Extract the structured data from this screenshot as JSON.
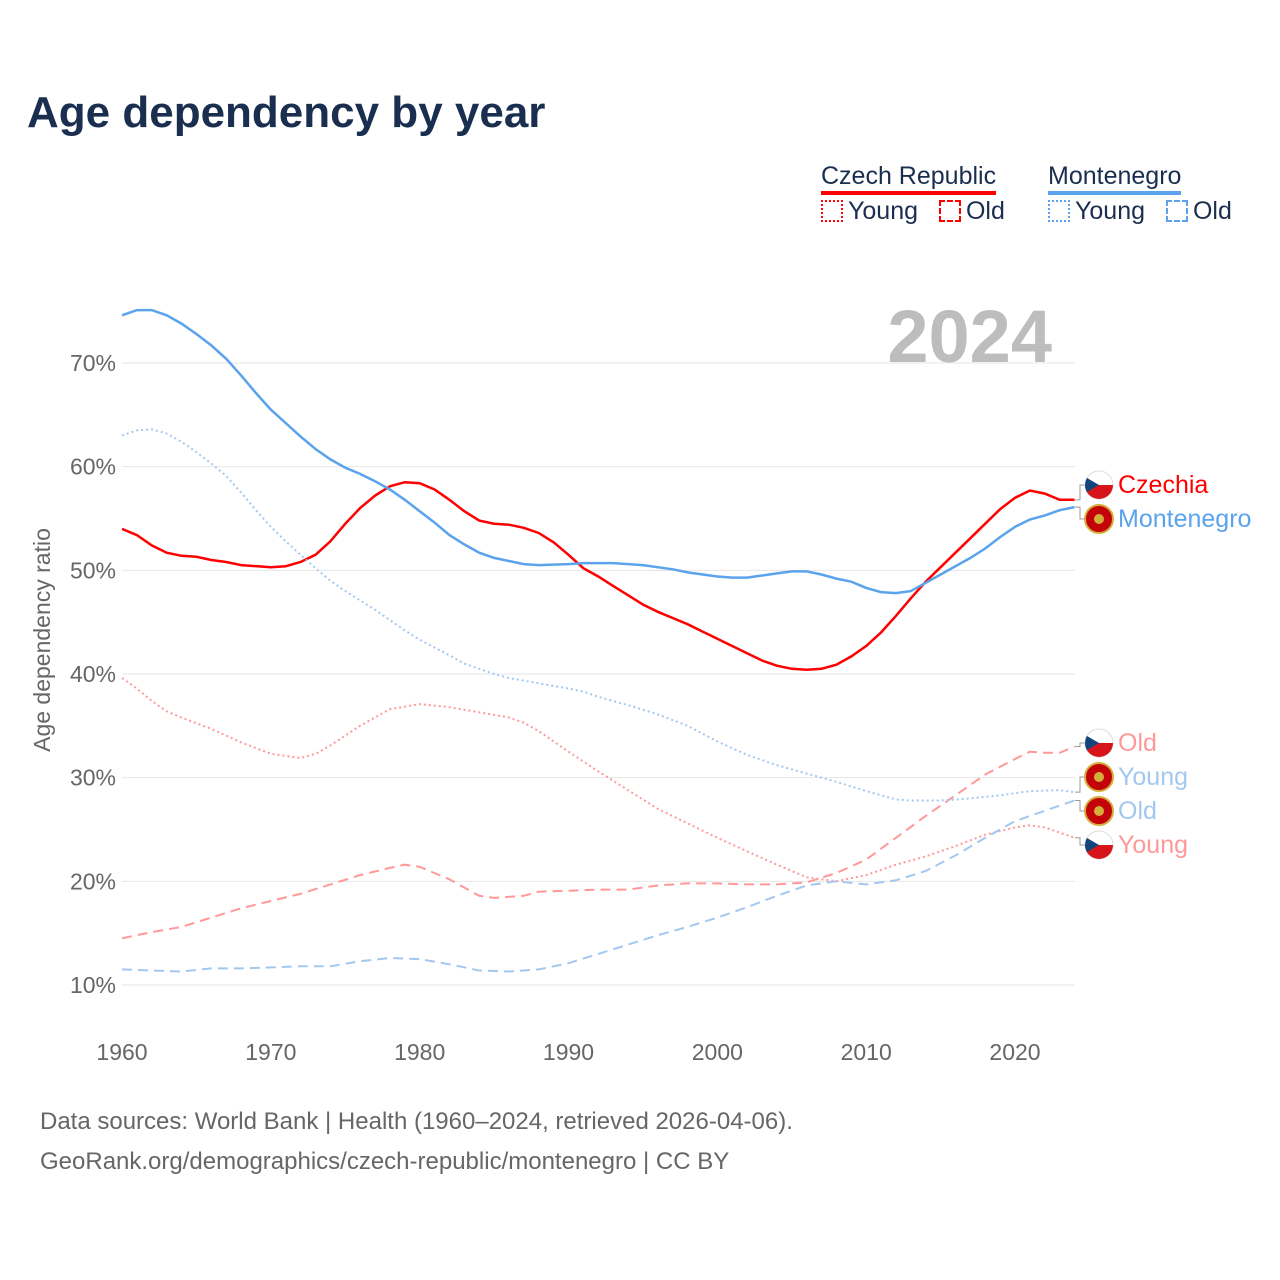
{
  "title": "Age dependency by year",
  "legend": {
    "groups": [
      {
        "name": "Czech Republic",
        "color": "#ff0000",
        "items": [
          "Young",
          "Old"
        ]
      },
      {
        "name": "Montenegro",
        "color": "#5ba3ec",
        "items": [
          "Young",
          "Old"
        ]
      }
    ]
  },
  "year_label": "2024",
  "footer": {
    "line1": "Data sources: World Bank | Health (1960–2024, retrieved 2026-04-06).",
    "line2": "GeoRank.org/demographics/czech-republic/montenegro | CC BY"
  },
  "chart_data": {
    "type": "line",
    "title": "Age dependency by year",
    "xlabel": "",
    "ylabel": "Age dependency ratio",
    "xlim": [
      1960,
      2024
    ],
    "ylim": [
      7,
      76
    ],
    "xticks": [
      1960,
      1970,
      1980,
      1990,
      2000,
      2010,
      2020
    ],
    "yticks": [
      10,
      20,
      30,
      40,
      50,
      60,
      70
    ],
    "ytick_labels": [
      "10%",
      "20%",
      "30%",
      "40%",
      "50%",
      "60%",
      "70%"
    ],
    "grid": true,
    "series": [
      {
        "name": "Czechia",
        "kind": "Total",
        "country": "cz",
        "color": "#ff0000",
        "style": "solid",
        "end_label": "Czechia",
        "points": [
          [
            1960,
            54
          ],
          [
            1961,
            53.4
          ],
          [
            1962,
            52.4
          ],
          [
            1963,
            51.7
          ],
          [
            1964,
            51.4
          ],
          [
            1965,
            51.3
          ],
          [
            1966,
            51
          ],
          [
            1967,
            50.8
          ],
          [
            1968,
            50.5
          ],
          [
            1970,
            50.3
          ],
          [
            1971,
            50.4
          ],
          [
            1972,
            50.8
          ],
          [
            1973,
            51.5
          ],
          [
            1974,
            52.8
          ],
          [
            1975,
            54.5
          ],
          [
            1976,
            56
          ],
          [
            1977,
            57.2
          ],
          [
            1978,
            58.1
          ],
          [
            1979,
            58.5
          ],
          [
            1980,
            58.4
          ],
          [
            1981,
            57.8
          ],
          [
            1982,
            56.8
          ],
          [
            1983,
            55.7
          ],
          [
            1984,
            54.8
          ],
          [
            1985,
            54.5
          ],
          [
            1986,
            54.4
          ],
          [
            1987,
            54.1
          ],
          [
            1988,
            53.6
          ],
          [
            1989,
            52.7
          ],
          [
            1990,
            51.5
          ],
          [
            1991,
            50.2
          ],
          [
            1992,
            49.4
          ],
          [
            1993,
            48.5
          ],
          [
            1994,
            47.6
          ],
          [
            1995,
            46.7
          ],
          [
            1996,
            46
          ],
          [
            1997,
            45.4
          ],
          [
            1998,
            44.8
          ],
          [
            1999,
            44.1
          ],
          [
            2000,
            43.4
          ],
          [
            2001,
            42.7
          ],
          [
            2002,
            42
          ],
          [
            2003,
            41.3
          ],
          [
            2004,
            40.8
          ],
          [
            2005,
            40.5
          ],
          [
            2006,
            40.4
          ],
          [
            2007,
            40.5
          ],
          [
            2008,
            40.9
          ],
          [
            2009,
            41.7
          ],
          [
            2010,
            42.7
          ],
          [
            2011,
            44
          ],
          [
            2012,
            45.6
          ],
          [
            2013,
            47.3
          ],
          [
            2014,
            48.9
          ],
          [
            2015,
            50.3
          ],
          [
            2016,
            51.7
          ],
          [
            2017,
            53.1
          ],
          [
            2018,
            54.5
          ],
          [
            2019,
            55.9
          ],
          [
            2020,
            57
          ],
          [
            2021,
            57.7
          ],
          [
            2022,
            57.4
          ],
          [
            2023,
            56.8
          ],
          [
            2024,
            56.8
          ]
        ]
      },
      {
        "name": "Montenegro",
        "kind": "Total",
        "country": "me",
        "color": "#5ba3ec",
        "style": "solid",
        "end_label": "Montenegro",
        "points": [
          [
            1960,
            74.6
          ],
          [
            1961,
            75.1
          ],
          [
            1962,
            75.1
          ],
          [
            1963,
            74.6
          ],
          [
            1964,
            73.8
          ],
          [
            1965,
            72.8
          ],
          [
            1966,
            71.7
          ],
          [
            1967,
            70.4
          ],
          [
            1968,
            68.8
          ],
          [
            1969,
            67.1
          ],
          [
            1970,
            65.5
          ],
          [
            1971,
            64.2
          ],
          [
            1972,
            62.9
          ],
          [
            1973,
            61.7
          ],
          [
            1974,
            60.7
          ],
          [
            1975,
            59.9
          ],
          [
            1976,
            59.3
          ],
          [
            1977,
            58.6
          ],
          [
            1978,
            57.8
          ],
          [
            1979,
            56.8
          ],
          [
            1980,
            55.7
          ],
          [
            1981,
            54.6
          ],
          [
            1982,
            53.4
          ],
          [
            1983,
            52.5
          ],
          [
            1984,
            51.7
          ],
          [
            1985,
            51.2
          ],
          [
            1986,
            50.9
          ],
          [
            1987,
            50.6
          ],
          [
            1988,
            50.5
          ],
          [
            1990,
            50.6
          ],
          [
            1991,
            50.7
          ],
          [
            1993,
            50.7
          ],
          [
            1995,
            50.5
          ],
          [
            1997,
            50.1
          ],
          [
            1998,
            49.8
          ],
          [
            2000,
            49.4
          ],
          [
            2001,
            49.3
          ],
          [
            2002,
            49.3
          ],
          [
            2003,
            49.5
          ],
          [
            2004,
            49.7
          ],
          [
            2005,
            49.9
          ],
          [
            2006,
            49.9
          ],
          [
            2007,
            49.6
          ],
          [
            2008,
            49.2
          ],
          [
            2009,
            48.9
          ],
          [
            2010,
            48.3
          ],
          [
            2011,
            47.9
          ],
          [
            2012,
            47.8
          ],
          [
            2013,
            48
          ],
          [
            2014,
            48.8
          ],
          [
            2015,
            49.6
          ],
          [
            2016,
            50.4
          ],
          [
            2017,
            51.2
          ],
          [
            2018,
            52.1
          ],
          [
            2019,
            53.2
          ],
          [
            2020,
            54.2
          ],
          [
            2021,
            54.9
          ],
          [
            2022,
            55.3
          ],
          [
            2023,
            55.8
          ],
          [
            2024,
            56.1
          ]
        ]
      },
      {
        "name": "Czechia Young",
        "kind": "Young",
        "country": "cz",
        "color": "#ff9999",
        "style": "dotted",
        "end_label": "Young",
        "points": [
          [
            1960,
            39.6
          ],
          [
            1961,
            38.6
          ],
          [
            1962,
            37.4
          ],
          [
            1963,
            36.4
          ],
          [
            1964,
            35.8
          ],
          [
            1966,
            34.7
          ],
          [
            1968,
            33.4
          ],
          [
            1970,
            32.3
          ],
          [
            1972,
            31.9
          ],
          [
            1973,
            32.3
          ],
          [
            1974,
            33.1
          ],
          [
            1976,
            35
          ],
          [
            1978,
            36.6
          ],
          [
            1980,
            37.1
          ],
          [
            1982,
            36.8
          ],
          [
            1984,
            36.3
          ],
          [
            1986,
            35.8
          ],
          [
            1987,
            35.3
          ],
          [
            1988,
            34.5
          ],
          [
            1990,
            32.5
          ],
          [
            1992,
            30.6
          ],
          [
            1994,
            28.8
          ],
          [
            1996,
            27
          ],
          [
            1998,
            25.6
          ],
          [
            2000,
            24.2
          ],
          [
            2002,
            22.9
          ],
          [
            2004,
            21.6
          ],
          [
            2006,
            20.4
          ],
          [
            2008,
            20
          ],
          [
            2010,
            20.6
          ],
          [
            2012,
            21.6
          ],
          [
            2014,
            22.4
          ],
          [
            2016,
            23.4
          ],
          [
            2018,
            24.5
          ],
          [
            2020,
            25.2
          ],
          [
            2021,
            25.4
          ],
          [
            2022,
            25.2
          ],
          [
            2024,
            24.2
          ]
        ]
      },
      {
        "name": "Czechia Old",
        "kind": "Old",
        "country": "cz",
        "color": "#ff9999",
        "style": "dashed",
        "end_label": "Old",
        "points": [
          [
            1960,
            14.5
          ],
          [
            1962,
            15.1
          ],
          [
            1964,
            15.6
          ],
          [
            1966,
            16.5
          ],
          [
            1968,
            17.4
          ],
          [
            1970,
            18.1
          ],
          [
            1972,
            18.8
          ],
          [
            1974,
            19.7
          ],
          [
            1976,
            20.6
          ],
          [
            1978,
            21.3
          ],
          [
            1979,
            21.6
          ],
          [
            1980,
            21.4
          ],
          [
            1982,
            20.2
          ],
          [
            1984,
            18.6
          ],
          [
            1985,
            18.4
          ],
          [
            1987,
            18.6
          ],
          [
            1988,
            19
          ],
          [
            1990,
            19.1
          ],
          [
            1992,
            19.2
          ],
          [
            1994,
            19.2
          ],
          [
            1996,
            19.6
          ],
          [
            1998,
            19.8
          ],
          [
            2000,
            19.8
          ],
          [
            2002,
            19.7
          ],
          [
            2004,
            19.7
          ],
          [
            2006,
            19.9
          ],
          [
            2008,
            20.8
          ],
          [
            2010,
            22.1
          ],
          [
            2012,
            24.2
          ],
          [
            2014,
            26.3
          ],
          [
            2016,
            28.3
          ],
          [
            2018,
            30.3
          ],
          [
            2020,
            31.8
          ],
          [
            2021,
            32.5
          ],
          [
            2022,
            32.4
          ],
          [
            2023,
            32.4
          ],
          [
            2024,
            33
          ]
        ]
      },
      {
        "name": "Montenegro Young",
        "kind": "Young",
        "country": "me",
        "color": "#a3c8f0",
        "style": "dotted",
        "end_label": "Young",
        "points": [
          [
            1960,
            63
          ],
          [
            1961,
            63.5
          ],
          [
            1962,
            63.6
          ],
          [
            1963,
            63.2
          ],
          [
            1964,
            62.4
          ],
          [
            1965,
            61.4
          ],
          [
            1966,
            60.3
          ],
          [
            1967,
            59.1
          ],
          [
            1968,
            57.5
          ],
          [
            1969,
            55.8
          ],
          [
            1970,
            54.2
          ],
          [
            1971,
            52.8
          ],
          [
            1972,
            51.5
          ],
          [
            1973,
            50.2
          ],
          [
            1974,
            49
          ],
          [
            1975,
            48
          ],
          [
            1976,
            47.1
          ],
          [
            1977,
            46.2
          ],
          [
            1978,
            45.2
          ],
          [
            1979,
            44.2
          ],
          [
            1980,
            43.3
          ],
          [
            1982,
            41.8
          ],
          [
            1983,
            41
          ],
          [
            1984,
            40.5
          ],
          [
            1985,
            40
          ],
          [
            1986,
            39.6
          ],
          [
            1988,
            39.1
          ],
          [
            1990,
            38.6
          ],
          [
            1991,
            38.3
          ],
          [
            1992,
            37.8
          ],
          [
            1994,
            37
          ],
          [
            1996,
            36.1
          ],
          [
            1998,
            35
          ],
          [
            2000,
            33.5
          ],
          [
            2002,
            32.2
          ],
          [
            2004,
            31.2
          ],
          [
            2006,
            30.4
          ],
          [
            2008,
            29.6
          ],
          [
            2010,
            28.7
          ],
          [
            2012,
            27.9
          ],
          [
            2013,
            27.8
          ],
          [
            2015,
            27.8
          ],
          [
            2017,
            28
          ],
          [
            2019,
            28.3
          ],
          [
            2021,
            28.7
          ],
          [
            2023,
            28.8
          ],
          [
            2024,
            28.6
          ]
        ]
      },
      {
        "name": "Montenegro Old",
        "kind": "Old",
        "country": "me",
        "color": "#a3c8f0",
        "style": "dashed",
        "end_label": "Old",
        "points": [
          [
            1960,
            11.5
          ],
          [
            1962,
            11.4
          ],
          [
            1964,
            11.3
          ],
          [
            1966,
            11.6
          ],
          [
            1968,
            11.6
          ],
          [
            1970,
            11.7
          ],
          [
            1972,
            11.8
          ],
          [
            1974,
            11.8
          ],
          [
            1976,
            12.3
          ],
          [
            1978,
            12.6
          ],
          [
            1980,
            12.5
          ],
          [
            1982,
            12
          ],
          [
            1984,
            11.4
          ],
          [
            1986,
            11.3
          ],
          [
            1988,
            11.5
          ],
          [
            1990,
            12.1
          ],
          [
            1992,
            13
          ],
          [
            1994,
            13.9
          ],
          [
            1996,
            14.8
          ],
          [
            1998,
            15.6
          ],
          [
            2000,
            16.5
          ],
          [
            2002,
            17.5
          ],
          [
            2004,
            18.6
          ],
          [
            2006,
            19.6
          ],
          [
            2008,
            20
          ],
          [
            2010,
            19.7
          ],
          [
            2012,
            20.1
          ],
          [
            2014,
            21
          ],
          [
            2016,
            22.5
          ],
          [
            2018,
            24.2
          ],
          [
            2020,
            25.8
          ],
          [
            2022,
            26.8
          ],
          [
            2024,
            27.8
          ]
        ]
      }
    ],
    "end_label_order": [
      "Czechia",
      "Montenegro",
      "Czechia Old",
      "Montenegro Young",
      "Montenegro Old",
      "Czechia Young"
    ]
  }
}
